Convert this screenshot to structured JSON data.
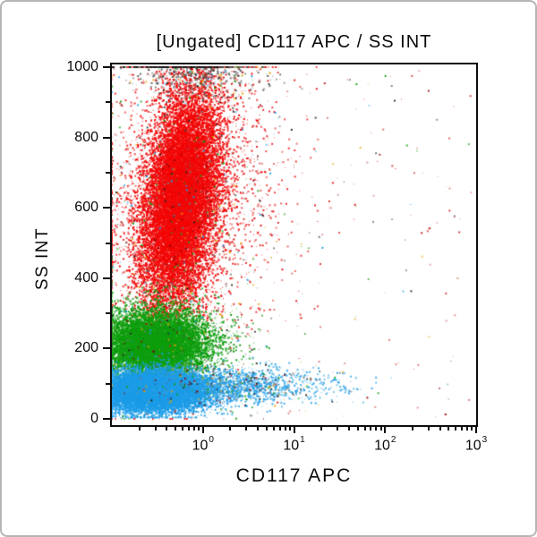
{
  "frame": {
    "background": "#ffffff",
    "border_color": "#b5b5b5"
  },
  "chart_data": {
    "type": "scatter",
    "subtype": "flow-cytometry-dot-plot",
    "title": "[Ungated] CD117 APC / SS INT",
    "xlabel": "CD117 APC",
    "ylabel": "SS INT",
    "x_scale": "log",
    "x_range_log10": [
      -1,
      3
    ],
    "y_scale": "linear",
    "y_range": [
      0,
      1000
    ],
    "grid": "off",
    "legend": "none",
    "x_ticks": [
      {
        "base": "10",
        "exp": "0",
        "log10": 0
      },
      {
        "base": "10",
        "exp": "1",
        "log10": 1
      },
      {
        "base": "10",
        "exp": "2",
        "log10": 2
      },
      {
        "base": "10",
        "exp": "3",
        "log10": 3
      }
    ],
    "y_ticks_major": [
      0,
      200,
      400,
      600,
      800,
      1000
    ],
    "y_ticks_minor": [
      100,
      300,
      500,
      700,
      900
    ],
    "axis_color": "#0d0d0d",
    "speckle_colors": [
      "#222222",
      "#8b0000",
      "#0fa00f",
      "#1b9ce8",
      "#e8a000",
      "#777777"
    ],
    "populations": [
      {
        "name": "granulocytes-core",
        "color": "#f40505",
        "n": 16000,
        "mu_logx": -0.24,
        "sigma_logx": 0.2,
        "mu_y": 630,
        "sigma_y": 155,
        "tilt": 0.00045,
        "alpha": 0.8
      },
      {
        "name": "granulocytes-halo",
        "color": "#e81414",
        "n": 3000,
        "mu_logx": -0.22,
        "sigma_logx": 0.52,
        "mu_y": 600,
        "sigma_y": 225,
        "tilt": 0.00045,
        "alpha": 0.5,
        "speckle": 0.18
      },
      {
        "name": "monocytes-core",
        "color": "#0da00d",
        "n": 9500,
        "mu_logx": -0.52,
        "sigma_logx": 0.27,
        "mu_y": 212,
        "sigma_y": 45,
        "alpha": 0.75
      },
      {
        "name": "monocytes-halo",
        "color": "#129612",
        "n": 1200,
        "mu_logx": -0.45,
        "sigma_logx": 0.45,
        "mu_y": 215,
        "sigma_y": 75,
        "alpha": 0.5,
        "speckle": 0.15
      },
      {
        "name": "lymphocytes-core",
        "color": "#1b9ce8",
        "n": 11500,
        "mu_logx": -0.55,
        "sigma_logx": 0.3,
        "mu_y": 78,
        "sigma_y": 28,
        "clamp_y_min": 4,
        "alpha": 0.75
      },
      {
        "name": "lymphocytes-tail",
        "color": "#27a0e8",
        "n": 1700,
        "mu_logx": 0.3,
        "sigma_logx": 0.55,
        "mu_y": 95,
        "sigma_y": 26,
        "clamp_y_min": 4,
        "alpha": 0.55,
        "speckle": 0.2
      },
      {
        "name": "debris-top",
        "color": "#555555",
        "n": 450,
        "mu_logx": -0.05,
        "sigma_logx": 0.33,
        "mu_y": 975,
        "sigma_y": 30,
        "clamp_y_max": 1000,
        "alpha": 0.5,
        "speckle": 0.3
      },
      {
        "name": "saturated-top",
        "color": "#111111",
        "n": 130,
        "mu_logx": -0.3,
        "sigma_logx": 0.28,
        "mu_y": 1000,
        "sigma_y": 0,
        "alpha": 0.85
      },
      {
        "name": "scatter-noise",
        "color": "#cc2222",
        "n": 260,
        "uniform": true,
        "alpha": 0.35,
        "speckle": 0.55
      }
    ]
  }
}
